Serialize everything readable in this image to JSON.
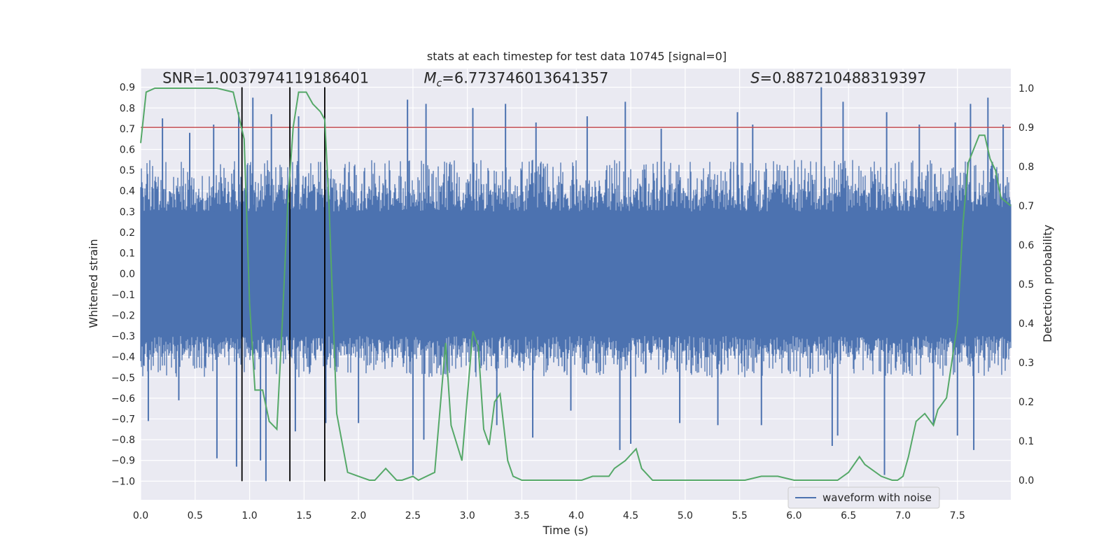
{
  "chart_data": {
    "type": "line",
    "title": "stats at each timestep for test data 10745 [signal=0]",
    "xlabel": "Time (s)",
    "ylabel_left": "Whitened strain",
    "ylabel_right": "Detection probability",
    "xlim": [
      0.0,
      7.99
    ],
    "ylim_left": [
      -1.09,
      0.99
    ],
    "ylim_right": [
      -0.05,
      1.05
    ],
    "x_ticks": [
      0.0,
      0.5,
      1.0,
      1.5,
      2.0,
      2.5,
      3.0,
      3.5,
      4.0,
      4.5,
      5.0,
      5.5,
      6.0,
      6.5,
      7.0,
      7.5
    ],
    "x_tick_labels": [
      "0.0",
      "0.5",
      "1.0",
      "1.5",
      "2.0",
      "2.5",
      "3.0",
      "3.5",
      "4.0",
      "4.5",
      "5.0",
      "5.5",
      "6.0",
      "6.5",
      "7.0",
      "7.5"
    ],
    "y_left_ticks": [
      0.9,
      0.8,
      0.7,
      0.6,
      0.5,
      0.4,
      0.3,
      0.2,
      0.1,
      0.0,
      -0.1,
      -0.2,
      -0.3,
      -0.4,
      -0.5,
      -0.6,
      -0.7,
      -0.8,
      -0.9,
      -1.0
    ],
    "y_left_tick_labels": [
      "0.9",
      "0.8",
      "0.7",
      "0.6",
      "0.5",
      "0.4",
      "0.3",
      "0.2",
      "0.1",
      "0.0",
      "−0.1",
      "−0.2",
      "−0.3",
      "−0.4",
      "−0.5",
      "−0.6",
      "−0.7",
      "−0.8",
      "−0.9",
      "−1.0"
    ],
    "y_right_ticks": [
      1.0,
      0.9,
      0.8,
      0.7,
      0.6,
      0.5,
      0.4,
      0.3,
      0.2,
      0.1,
      0.0
    ],
    "y_right_tick_labels": [
      "1.0",
      "0.9",
      "0.8",
      "0.7",
      "0.6",
      "0.5",
      "0.4",
      "0.3",
      "0.2",
      "0.1",
      "0.0"
    ],
    "threshold": {
      "axis": "right",
      "value": 0.9,
      "color": "#c44e52"
    },
    "vlines": [
      0.93,
      1.37,
      1.69
    ],
    "vline_color": "#000000",
    "vline_range_left": [
      -1.0,
      0.9
    ],
    "annotations": {
      "snr": "SNR=1.0037974119186401",
      "mc_symbol": "M",
      "mc_sub": "c",
      "mc_value": "=6.773746013641357",
      "s_symbol": "S",
      "s_value": "=0.887210488319397",
      "snr_x": 0.2,
      "mc_x": 2.6,
      "s_x": 5.6,
      "y": 0.92
    },
    "series": [
      {
        "name": "waveform with noise",
        "axis": "left",
        "color": "#4c72b0",
        "kind": "dense-noise",
        "core_amplitude": 0.3,
        "typical_upper": [
          0.35,
          0.55
        ],
        "typical_lower": [
          -0.3,
          -0.5
        ],
        "spike_x": [
          0.2,
          0.45,
          0.67,
          0.9,
          1.03,
          1.2,
          1.45,
          2.45,
          2.62,
          3.05,
          3.35,
          3.63,
          4.1,
          4.45,
          4.78,
          5.48,
          5.62,
          6.25,
          6.45,
          6.85,
          7.15,
          7.48,
          7.62,
          7.78,
          7.92
        ],
        "spike_y": [
          0.75,
          0.68,
          0.72,
          0.78,
          0.85,
          0.77,
          0.76,
          0.84,
          0.82,
          0.8,
          0.82,
          0.73,
          0.76,
          0.83,
          0.7,
          0.78,
          0.72,
          0.9,
          0.83,
          0.78,
          0.72,
          0.73,
          0.82,
          0.85,
          0.72
        ],
        "dip_x": [
          0.07,
          0.35,
          0.7,
          0.88,
          1.1,
          1.15,
          1.42,
          1.7,
          2.0,
          2.5,
          2.6,
          3.27,
          3.6,
          3.95,
          4.4,
          4.5,
          4.95,
          5.3,
          5.7,
          6.35,
          6.4,
          6.83,
          7.28,
          7.5,
          7.65
        ],
        "dip_y": [
          -0.71,
          -0.61,
          -0.89,
          -0.93,
          -0.9,
          -1.0,
          -0.76,
          -0.72,
          -0.72,
          -0.97,
          -0.8,
          -0.73,
          -0.79,
          -0.66,
          -0.85,
          -0.82,
          -0.72,
          -0.73,
          -0.73,
          -0.83,
          -0.78,
          -0.97,
          -0.73,
          -0.78,
          -0.85
        ]
      },
      {
        "name": "detection probability",
        "axis": "right",
        "color": "#55a868",
        "x": [
          0.0,
          0.05,
          0.13,
          0.3,
          0.5,
          0.7,
          0.85,
          0.9,
          0.95,
          1.0,
          1.05,
          1.12,
          1.18,
          1.25,
          1.3,
          1.35,
          1.4,
          1.45,
          1.52,
          1.58,
          1.65,
          1.69,
          1.73,
          1.8,
          1.9,
          2.0,
          2.1,
          2.15,
          2.25,
          2.35,
          2.4,
          2.5,
          2.55,
          2.7,
          2.8,
          2.85,
          2.95,
          3.05,
          3.1,
          3.15,
          3.2,
          3.25,
          3.3,
          3.37,
          3.42,
          3.5,
          3.6,
          3.75,
          3.9,
          4.0,
          4.05,
          4.15,
          4.2,
          4.3,
          4.35,
          4.45,
          4.55,
          4.6,
          4.7,
          4.85,
          5.0,
          5.2,
          5.5,
          5.55,
          5.7,
          5.85,
          6.0,
          6.2,
          6.4,
          6.5,
          6.6,
          6.65,
          6.7,
          6.8,
          6.9,
          6.95,
          7.0,
          7.05,
          7.12,
          7.2,
          7.28,
          7.32,
          7.4,
          7.5,
          7.55,
          7.6,
          7.7,
          7.75,
          7.8,
          7.85,
          7.9,
          7.99
        ],
        "y": [
          0.86,
          0.99,
          1.0,
          1.0,
          1.0,
          1.0,
          0.99,
          0.93,
          0.87,
          0.45,
          0.23,
          0.23,
          0.15,
          0.13,
          0.4,
          0.7,
          0.9,
          0.99,
          0.99,
          0.96,
          0.94,
          0.92,
          0.7,
          0.17,
          0.02,
          0.01,
          0.0,
          0.0,
          0.03,
          0.0,
          0.0,
          0.01,
          0.0,
          0.02,
          0.35,
          0.14,
          0.05,
          0.38,
          0.34,
          0.13,
          0.09,
          0.2,
          0.22,
          0.05,
          0.01,
          0.0,
          0.0,
          0.0,
          0.0,
          0.0,
          0.0,
          0.01,
          0.01,
          0.01,
          0.03,
          0.05,
          0.08,
          0.03,
          0.0,
          0.0,
          0.0,
          0.0,
          0.0,
          0.0,
          0.01,
          0.01,
          0.0,
          0.0,
          0.0,
          0.02,
          0.06,
          0.04,
          0.03,
          0.01,
          0.0,
          0.0,
          0.01,
          0.06,
          0.15,
          0.17,
          0.14,
          0.18,
          0.21,
          0.4,
          0.65,
          0.81,
          0.88,
          0.88,
          0.82,
          0.79,
          0.72,
          0.7
        ]
      }
    ],
    "legend": {
      "label": "waveform with noise",
      "placement": "lower-right"
    },
    "grid": true,
    "background": "#eaeaf2",
    "grid_color": "#ffffff"
  }
}
